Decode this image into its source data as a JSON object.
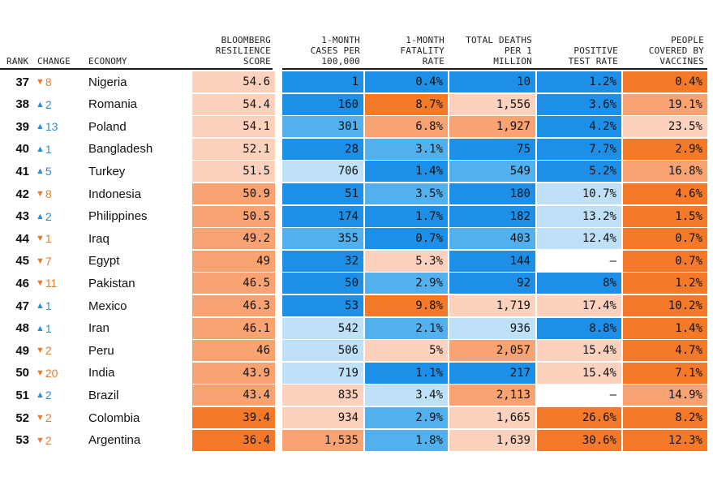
{
  "chart_data": {
    "type": "table",
    "columns": [
      {
        "key": "rank",
        "label": "RANK"
      },
      {
        "key": "change",
        "label": "CHANGE"
      },
      {
        "key": "economy",
        "label": "ECONOMY"
      },
      {
        "key": "score",
        "label": "BLOOMBERG\nRESILIENCE\nSCORE"
      },
      {
        "key": "cases",
        "label": "1-MONTH\nCASES PER\n100,000"
      },
      {
        "key": "fatality",
        "label": "1-MONTH\nFATALITY\nRATE"
      },
      {
        "key": "deaths",
        "label": "TOTAL DEATHS\nPER 1\nMILLION"
      },
      {
        "key": "positive",
        "label": "POSITIVE\nTEST RATE"
      },
      {
        "key": "vaccines",
        "label": "PEOPLE\nCOVERED BY\nVACCINES"
      }
    ],
    "rows": [
      {
        "rank": "37",
        "dir": "down",
        "change": "8",
        "economy": "Nigeria",
        "score": "54.6",
        "cases": "1",
        "fatality": "0.4%",
        "deaths": "10",
        "positive": "1.2%",
        "vaccines": "0.4%"
      },
      {
        "rank": "38",
        "dir": "up",
        "change": "2",
        "economy": "Romania",
        "score": "54.4",
        "cases": "160",
        "fatality": "8.7%",
        "deaths": "1,556",
        "positive": "3.6%",
        "vaccines": "19.1%"
      },
      {
        "rank": "39",
        "dir": "up",
        "change": "13",
        "economy": "Poland",
        "score": "54.1",
        "cases": "301",
        "fatality": "6.8%",
        "deaths": "1,927",
        "positive": "4.2%",
        "vaccines": "23.5%"
      },
      {
        "rank": "40",
        "dir": "up",
        "change": "1",
        "economy": "Bangladesh",
        "score": "52.1",
        "cases": "28",
        "fatality": "3.1%",
        "deaths": "75",
        "positive": "7.7%",
        "vaccines": "2.9%"
      },
      {
        "rank": "41",
        "dir": "up",
        "change": "5",
        "economy": "Turkey",
        "score": "51.5",
        "cases": "706",
        "fatality": "1.4%",
        "deaths": "549",
        "positive": "5.2%",
        "vaccines": "16.8%"
      },
      {
        "rank": "42",
        "dir": "down",
        "change": "8",
        "economy": "Indonesia",
        "score": "50.9",
        "cases": "51",
        "fatality": "3.5%",
        "deaths": "180",
        "positive": "10.7%",
        "vaccines": "4.6%"
      },
      {
        "rank": "43",
        "dir": "up",
        "change": "2",
        "economy": "Philippines",
        "score": "50.5",
        "cases": "174",
        "fatality": "1.7%",
        "deaths": "182",
        "positive": "13.2%",
        "vaccines": "1.5%"
      },
      {
        "rank": "44",
        "dir": "down",
        "change": "1",
        "economy": "Iraq",
        "score": "49.2",
        "cases": "355",
        "fatality": "0.7%",
        "deaths": "403",
        "positive": "12.4%",
        "vaccines": "0.7%"
      },
      {
        "rank": "45",
        "dir": "down",
        "change": "7",
        "economy": "Egypt",
        "score": "49",
        "cases": "32",
        "fatality": "5.3%",
        "deaths": "144",
        "positive": "–",
        "vaccines": "0.7%"
      },
      {
        "rank": "46",
        "dir": "down",
        "change": "11",
        "economy": "Pakistan",
        "score": "46.5",
        "cases": "50",
        "fatality": "2.9%",
        "deaths": "92",
        "positive": "8%",
        "vaccines": "1.2%"
      },
      {
        "rank": "47",
        "dir": "up",
        "change": "1",
        "economy": "Mexico",
        "score": "46.3",
        "cases": "53",
        "fatality": "9.8%",
        "deaths": "1,719",
        "positive": "17.4%",
        "vaccines": "10.2%"
      },
      {
        "rank": "48",
        "dir": "up",
        "change": "1",
        "economy": "Iran",
        "score": "46.1",
        "cases": "542",
        "fatality": "2.1%",
        "deaths": "936",
        "positive": "8.8%",
        "vaccines": "1.4%"
      },
      {
        "rank": "49",
        "dir": "down",
        "change": "2",
        "economy": "Peru",
        "score": "46",
        "cases": "506",
        "fatality": "5%",
        "deaths": "2,057",
        "positive": "15.4%",
        "vaccines": "4.7%"
      },
      {
        "rank": "50",
        "dir": "down",
        "change": "20",
        "economy": "India",
        "score": "43.9",
        "cases": "719",
        "fatality": "1.1%",
        "deaths": "217",
        "positive": "15.4%",
        "vaccines": "7.1%"
      },
      {
        "rank": "51",
        "dir": "up",
        "change": "2",
        "economy": "Brazil",
        "score": "43.4",
        "cases": "835",
        "fatality": "3.4%",
        "deaths": "2,113",
        "positive": "–",
        "vaccines": "14.9%"
      },
      {
        "rank": "52",
        "dir": "down",
        "change": "2",
        "economy": "Colombia",
        "score": "39.4",
        "cases": "934",
        "fatality": "2.9%",
        "deaths": "1,665",
        "positive": "26.6%",
        "vaccines": "8.2%"
      },
      {
        "rank": "53",
        "dir": "down",
        "change": "2",
        "economy": "Argentina",
        "score": "36.4",
        "cases": "1,535",
        "fatality": "1.8%",
        "deaths": "1,639",
        "positive": "30.6%",
        "vaccines": "12.3%"
      }
    ],
    "cell_colors": {
      "score": [
        "#fcd1bd",
        "#fcd1bd",
        "#fcd1bd",
        "#fcd1bd",
        "#fcd1bd",
        "#f8a371",
        "#f8a371",
        "#f8a371",
        "#f8a371",
        "#f8a371",
        "#f8a371",
        "#f8a371",
        "#f8a371",
        "#f8a371",
        "#f8a371",
        "#f47a2a",
        "#f47a2a"
      ],
      "cases": [
        "#1d8fe6",
        "#1d8fe6",
        "#52b0ee",
        "#1d8fe6",
        "#bfe1f8",
        "#1d8fe6",
        "#1d8fe6",
        "#52b0ee",
        "#1d8fe6",
        "#1d8fe6",
        "#1d8fe6",
        "#bfe1f8",
        "#bfe1f8",
        "#bfe1f8",
        "#fcd1bd",
        "#fcd1bd",
        "#f8a371"
      ],
      "fatality": [
        "#1d8fe6",
        "#f47a2a",
        "#f8a371",
        "#52b0ee",
        "#1d8fe6",
        "#52b0ee",
        "#1d8fe6",
        "#1d8fe6",
        "#fcd1bd",
        "#52b0ee",
        "#f47a2a",
        "#52b0ee",
        "#fcd1bd",
        "#1d8fe6",
        "#bfe1f8",
        "#52b0ee",
        "#52b0ee"
      ],
      "deaths": [
        "#1d8fe6",
        "#fcd1bd",
        "#f8a371",
        "#1d8fe6",
        "#52b0ee",
        "#1d8fe6",
        "#1d8fe6",
        "#52b0ee",
        "#1d8fe6",
        "#1d8fe6",
        "#fcd1bd",
        "#bfe1f8",
        "#f8a371",
        "#1d8fe6",
        "#f8a371",
        "#fcd1bd",
        "#fcd1bd"
      ],
      "positive": [
        "#1d8fe6",
        "#1d8fe6",
        "#1d8fe6",
        "#1d8fe6",
        "#1d8fe6",
        "#bfe1f8",
        "#bfe1f8",
        "#bfe1f8",
        "#ffffff",
        "#1d8fe6",
        "#fcd1bd",
        "#1d8fe6",
        "#fcd1bd",
        "#fcd1bd",
        "#ffffff",
        "#f47a2a",
        "#f47a2a"
      ],
      "vaccines": [
        "#f47a2a",
        "#f8a371",
        "#fcd1bd",
        "#f47a2a",
        "#f8a371",
        "#f47a2a",
        "#f47a2a",
        "#f47a2a",
        "#f47a2a",
        "#f47a2a",
        "#f47a2a",
        "#f47a2a",
        "#f47a2a",
        "#f47a2a",
        "#f8a371",
        "#f47a2a",
        "#f47a2a"
      ]
    }
  }
}
